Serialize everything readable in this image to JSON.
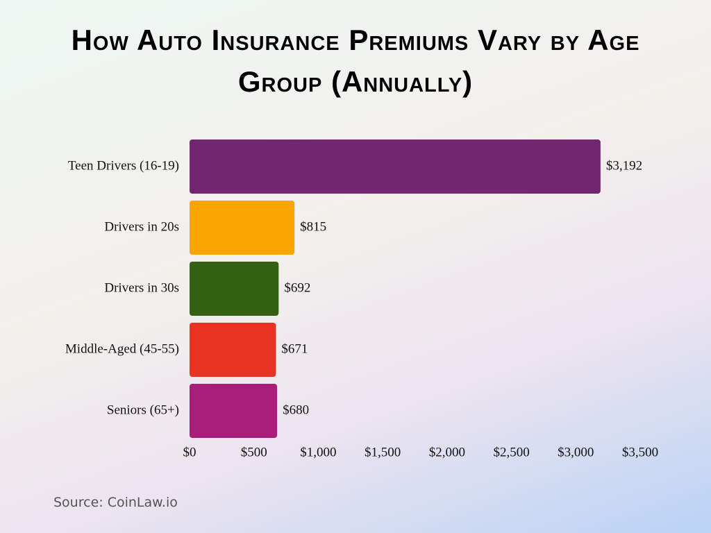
{
  "chart_data": {
    "type": "bar",
    "title": "How Auto Insurance Premiums Vary by Age Group (Annually)",
    "categories": [
      "Teen Drivers (16-19)",
      "Drivers in 20s",
      "Drivers in 30s",
      "Middle-Aged (45-55)",
      "Seniors (65+)"
    ],
    "values": [
      3192,
      815,
      692,
      671,
      680
    ],
    "value_labels": [
      "$3,192",
      "$815",
      "$692",
      "$671",
      "$680"
    ],
    "colors": [
      "#72266f",
      "#f9a602",
      "#336012",
      "#e83222",
      "#a91e7a"
    ],
    "xlim": [
      0,
      3500
    ],
    "xticks": [
      {
        "value": 0,
        "label": "$0"
      },
      {
        "value": 500,
        "label": "$500"
      },
      {
        "value": 1000,
        "label": "$1,000"
      },
      {
        "value": 1500,
        "label": "$1,500"
      },
      {
        "value": 2000,
        "label": "$2,000"
      },
      {
        "value": 2500,
        "label": "$2,500"
      },
      {
        "value": 3000,
        "label": "$3,000"
      },
      {
        "value": 3500,
        "label": "$3,500"
      }
    ],
    "source": "Source: CoinLaw.io"
  }
}
